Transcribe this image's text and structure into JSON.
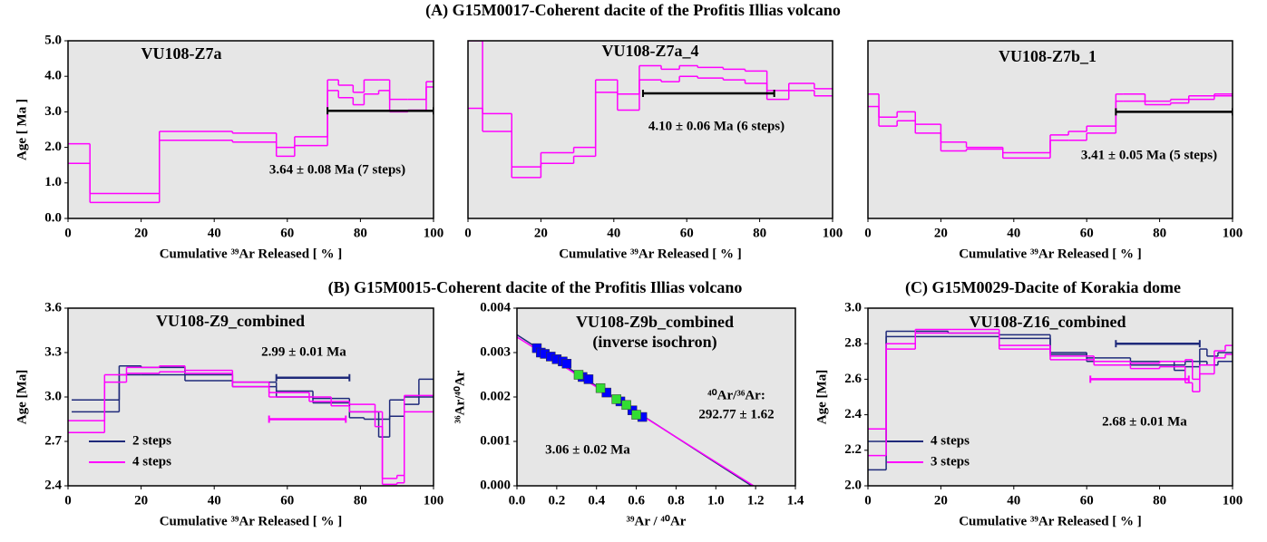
{
  "headings": [
    "(A) G15M0017-Coherent dacite of the Profitis Illias volcano",
    "(B) G15M0015-Coherent dacite of the Profitis Illias volcano",
    "(C) G15M0029-Dacite of Korakia dome"
  ],
  "chart_data": [
    {
      "type": "step",
      "title": "VU108-Z7a",
      "xlabel": "Cumulative ³⁹Ar Released [ % ]",
      "ylabel": "Age [ Ma ]",
      "xlim": [
        0,
        100
      ],
      "xticks": [
        0,
        20,
        40,
        60,
        80,
        100
      ],
      "ylim": [
        0,
        5
      ],
      "yticks": [
        {
          "value": 0,
          "label": "0.0"
        },
        {
          "value": 1,
          "label": "1.0"
        },
        {
          "value": 2,
          "label": "2.0"
        },
        {
          "value": 3,
          "label": "3.0"
        },
        {
          "value": 4,
          "label": "4.0"
        },
        {
          "value": 5,
          "label": "5.0"
        }
      ],
      "series": [
        {
          "color": "#ff00ff",
          "x": [
            0,
            6,
            25,
            45,
            57,
            62,
            67,
            71,
            74,
            78,
            81,
            85,
            88,
            93,
            98,
            100
          ],
          "upper": [
            2.1,
            0.7,
            2.45,
            2.4,
            2.0,
            2.3,
            2.3,
            3.9,
            3.75,
            3.55,
            3.9,
            3.9,
            3.35,
            3.35,
            3.85
          ],
          "lower": [
            1.55,
            0.45,
            2.2,
            2.15,
            1.75,
            2.05,
            2.05,
            3.6,
            3.4,
            3.2,
            3.5,
            3.6,
            3.0,
            3.05,
            3.7
          ]
        }
      ],
      "plateaus": [
        {
          "color": "#000000",
          "x": [
            71,
            100
          ],
          "y": 3.03
        }
      ],
      "annotations": [
        "3.64 ± 0.08 Ma (7 steps)"
      ]
    },
    {
      "type": "step",
      "title": "VU108-Z7a_4",
      "xlabel": "Cumulative ³⁹Ar Released [ % ]",
      "xlim": [
        0,
        100
      ],
      "xticks": [
        0,
        20,
        40,
        60,
        80,
        100
      ],
      "ylim": [
        0,
        5
      ],
      "series": [
        {
          "color": "#ff00ff",
          "x": [
            0,
            4,
            12,
            20,
            29,
            35,
            41,
            47,
            53,
            58,
            63,
            70,
            76,
            82,
            88,
            95,
            100
          ],
          "upper": [
            5.0,
            2.95,
            1.45,
            1.85,
            2.0,
            3.9,
            3.5,
            4.3,
            4.2,
            4.3,
            4.25,
            4.2,
            4.15,
            3.6,
            3.8,
            3.65
          ],
          "lower": [
            3.1,
            2.45,
            1.15,
            1.55,
            1.75,
            3.55,
            3.05,
            3.9,
            3.85,
            4.0,
            3.95,
            3.9,
            3.8,
            3.35,
            3.6,
            3.45
          ]
        }
      ],
      "plateaus": [
        {
          "color": "#000000",
          "x": [
            48,
            84
          ],
          "y": 3.52
        }
      ],
      "annotations": [
        "4.10 ± 0.06 Ma (6 steps)"
      ]
    },
    {
      "type": "step",
      "title": "VU108-Z7b_1",
      "xlabel": "Cumulative ³⁹Ar Released [ % ]",
      "xlim": [
        0,
        100
      ],
      "xticks": [
        0,
        20,
        40,
        60,
        80,
        100
      ],
      "ylim": [
        0,
        5
      ],
      "series": [
        {
          "color": "#ff00ff",
          "x": [
            0,
            3,
            8,
            13,
            20,
            27,
            37,
            50,
            55,
            60,
            68,
            70,
            76,
            83,
            88,
            95,
            100
          ],
          "upper": [
            3.5,
            2.85,
            3.0,
            2.65,
            2.15,
            2.0,
            1.85,
            2.35,
            2.45,
            2.6,
            3.5,
            3.5,
            3.3,
            3.35,
            3.45,
            3.5
          ],
          "lower": [
            3.15,
            2.6,
            2.75,
            2.4,
            1.9,
            1.95,
            1.7,
            2.2,
            2.2,
            2.4,
            3.3,
            3.3,
            3.2,
            3.25,
            3.35,
            3.45
          ]
        }
      ],
      "plateaus": [
        {
          "color": "#000000",
          "x": [
            68,
            100
          ],
          "y": 3.0
        }
      ],
      "annotations": [
        "3.41 ± 0.05 Ma (5 steps)"
      ]
    },
    {
      "type": "step",
      "title": "VU108-Z9_combined",
      "xlabel": "Cumulative ³⁹Ar Released [ % ]",
      "ylabel": "Age [Ma]",
      "xlim": [
        0,
        100
      ],
      "xticks": [
        0,
        20,
        40,
        60,
        80,
        100
      ],
      "ylim": [
        2.4,
        3.6
      ],
      "yticks": [
        2.4,
        2.7,
        {
          "value": 3,
          "label": "3.0"
        },
        3.3,
        3.6
      ],
      "legend": "lower left",
      "series": [
        {
          "name": "2 steps",
          "color": "#1f2a7a",
          "x": [
            1,
            14,
            20,
            32,
            45,
            57,
            67,
            77,
            81,
            85,
            88,
            92,
            96,
            100
          ],
          "upper": [
            2.98,
            3.21,
            3.2,
            3.15,
            3.1,
            3.04,
            2.99,
            2.9,
            2.9,
            2.85,
            2.98,
            3.0,
            3.12
          ],
          "lower": [
            2.9,
            3.15,
            3.15,
            3.11,
            3.07,
            3.0,
            2.96,
            2.86,
            2.85,
            2.73,
            2.87,
            2.95,
            3.0
          ]
        },
        {
          "name": "4 steps",
          "color": "#ff00ff",
          "x": [
            0,
            10,
            16,
            25,
            32,
            45,
            55,
            66,
            72,
            77,
            84,
            86,
            90,
            92,
            100
          ],
          "upper": [
            2.84,
            3.15,
            3.2,
            3.21,
            3.18,
            3.1,
            3.03,
            3.0,
            2.97,
            2.95,
            2.9,
            2.45,
            2.47,
            3.01
          ],
          "lower": [
            2.76,
            3.1,
            3.16,
            3.17,
            3.16,
            3.07,
            3.0,
            2.97,
            2.94,
            2.9,
            2.8,
            2.41,
            2.42,
            2.9
          ]
        }
      ],
      "plateaus": [
        {
          "color": "#1f2a7a",
          "x": [
            57,
            77
          ],
          "y": 3.13
        },
        {
          "color": "#ff00ff",
          "x": [
            55,
            76
          ],
          "y": 2.85
        }
      ],
      "annotations": [
        "2.99 ± 0.01 Ma"
      ]
    },
    {
      "type": "scatter",
      "title": "VU108-Z9b_combined",
      "subtitle": "(inverse isochron)",
      "xlabel": "³⁹Ar / ⁴⁰Ar",
      "ylabel": "³⁶Ar/⁴⁰Ar",
      "xlim": [
        0,
        1.4
      ],
      "xticks": [
        {
          "value": 0,
          "label": "0.0"
        },
        0.2,
        0.4,
        0.6,
        0.8,
        {
          "value": 1,
          "label": "1.0"
        },
        1.2,
        1.4
      ],
      "ylim": [
        0,
        0.004
      ],
      "yticks": [
        {
          "value": 0,
          "label": "0.000"
        },
        0.001,
        0.002,
        0.003,
        0.004
      ],
      "series": [
        {
          "color": "#0000ff",
          "x": [
            0.1,
            0.12,
            0.14,
            0.17,
            0.2,
            0.23,
            0.25,
            0.33,
            0.36,
            0.45,
            0.52,
            0.58,
            0.63
          ],
          "values": [
            0.0031,
            0.003,
            0.00297,
            0.00291,
            0.00285,
            0.0028,
            0.00275,
            0.00245,
            0.0024,
            0.0021,
            0.0019,
            0.0017,
            0.00155
          ]
        },
        {
          "color": "#33dd33",
          "x": [
            0.31,
            0.42,
            0.5,
            0.55,
            0.6
          ],
          "values": [
            0.0025,
            0.0022,
            0.00195,
            0.00182,
            0.0016
          ]
        }
      ],
      "lines": [
        {
          "color": "#1f2a7a",
          "x": [
            0,
            1.18
          ],
          "values": [
            0.0034,
            0
          ]
        },
        {
          "color": "#ff00ff",
          "x": [
            0,
            1.19
          ],
          "values": [
            0.00335,
            0
          ]
        }
      ],
      "annotations": [
        "⁴⁰Ar/³⁶Ar:",
        "292.77 ± 1.62",
        "3.06 ± 0.02 Ma"
      ]
    },
    {
      "type": "step",
      "title": "VU108-Z16_combined",
      "xlabel": "Cumulative ³⁹Ar Released [ % ]",
      "ylabel": "Age [Ma]",
      "xlim": [
        0,
        100
      ],
      "xticks": [
        0,
        20,
        40,
        60,
        80,
        100
      ],
      "ylim": [
        2,
        3
      ],
      "yticks": [
        {
          "value": 2,
          "label": "2.0"
        },
        2.2,
        2.4,
        2.6,
        2.8,
        {
          "value": 3,
          "label": "3.0"
        }
      ],
      "legend": "lower left",
      "series": [
        {
          "name": "4 steps",
          "color": "#1f2a7a",
          "x": [
            0,
            5,
            22,
            36,
            50,
            60,
            72,
            84,
            87,
            91,
            93,
            96,
            100
          ],
          "upper": [
            2.25,
            2.87,
            2.86,
            2.85,
            2.75,
            2.72,
            2.7,
            2.68,
            2.7,
            2.77,
            2.73,
            2.75
          ],
          "lower": [
            2.09,
            2.84,
            2.84,
            2.83,
            2.74,
            2.7,
            2.68,
            2.65,
            2.67,
            2.7,
            2.68,
            2.7
          ]
        },
        {
          "name": "3 steps",
          "color": "#ff00ff",
          "x": [
            0,
            5,
            13,
            23,
            36,
            50,
            62,
            72,
            80,
            87,
            89,
            91,
            95,
            98,
            100
          ],
          "upper": [
            2.32,
            2.8,
            2.88,
            2.88,
            2.79,
            2.73,
            2.7,
            2.69,
            2.7,
            2.71,
            2.6,
            2.68,
            2.76,
            2.79
          ],
          "lower": [
            2.17,
            2.77,
            2.86,
            2.86,
            2.77,
            2.71,
            2.68,
            2.66,
            2.67,
            2.58,
            2.53,
            2.63,
            2.72,
            2.74
          ]
        }
      ],
      "plateaus": [
        {
          "color": "#1f2a7a",
          "x": [
            68,
            91
          ],
          "y": 2.8
        },
        {
          "color": "#ff00ff",
          "x": [
            61,
            88
          ],
          "y": 2.6
        }
      ],
      "annotations": [
        "2.68 ± 0.01 Ma"
      ]
    }
  ]
}
